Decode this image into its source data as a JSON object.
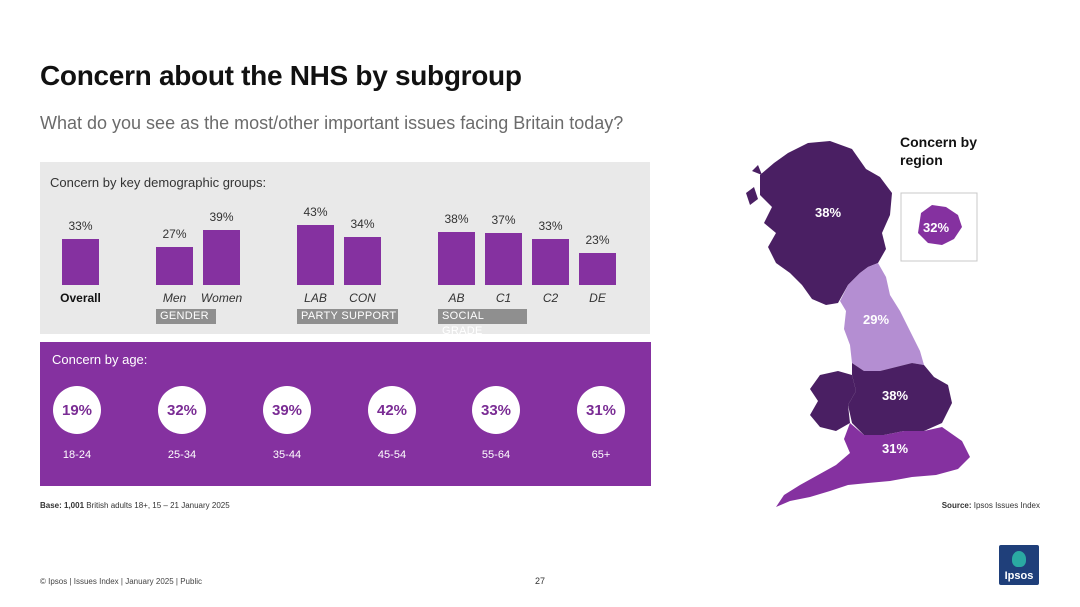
{
  "header": {
    "title": "Concern about the NHS by subgroup",
    "subtitle": "What do you see as the most/other important issues facing Britain today?"
  },
  "demographics": {
    "heading": "Concern by key demographic groups:",
    "groups": [
      "GENDER",
      "PARTY SUPPORT",
      "SOCIAL GRADE"
    ]
  },
  "age": {
    "heading": "Concern by age:",
    "items": [
      {
        "value": "19%",
        "label": "18-24"
      },
      {
        "value": "32%",
        "label": "25-34"
      },
      {
        "value": "39%",
        "label": "35-44"
      },
      {
        "value": "42%",
        "label": "45-54"
      },
      {
        "value": "33%",
        "label": "55-64"
      },
      {
        "value": "31%",
        "label": "65+"
      }
    ]
  },
  "region": {
    "heading": "Concern by region",
    "values": {
      "scotland": "38%",
      "north": "29%",
      "midlands": "38%",
      "south": "31%",
      "london": "32%"
    }
  },
  "notes": {
    "base_bold": "Base: 1,001",
    "base_rest": " British adults 18+, 15 – 21 January 2025",
    "source_bold": "Source:",
    "source_rest": " Ipsos Issues Index",
    "footer": "© Ipsos | Issues Index | January 2025 | Public",
    "page": "27"
  },
  "logo": {
    "text": "Ipsos"
  },
  "colors": {
    "accent": "#8531a0",
    "panel": "#e9e9e9",
    "dark_region": "#4a1f63",
    "mid_region": "#8531a0",
    "light_region": "#b48ed2"
  },
  "chart_data": [
    {
      "type": "bar",
      "title": "Concern by key demographic groups:",
      "categories": [
        "Overall",
        "Men",
        "Women",
        "LAB",
        "CON",
        "AB",
        "C1",
        "C2",
        "DE"
      ],
      "values": [
        33,
        27,
        39,
        43,
        34,
        38,
        37,
        33,
        23
      ],
      "value_labels": [
        "33%",
        "27%",
        "39%",
        "43%",
        "34%",
        "38%",
        "37%",
        "33%",
        "23%"
      ],
      "ylim": [
        0,
        50
      ],
      "grid": false
    },
    {
      "type": "table",
      "title": "Concern by age:",
      "categories": [
        "18-24",
        "25-34",
        "35-44",
        "45-54",
        "55-64",
        "65+"
      ],
      "values": [
        19,
        32,
        39,
        42,
        33,
        31
      ]
    },
    {
      "type": "table",
      "title": "Concern by region",
      "values": [
        38,
        29,
        38,
        31,
        32
      ]
    }
  ]
}
